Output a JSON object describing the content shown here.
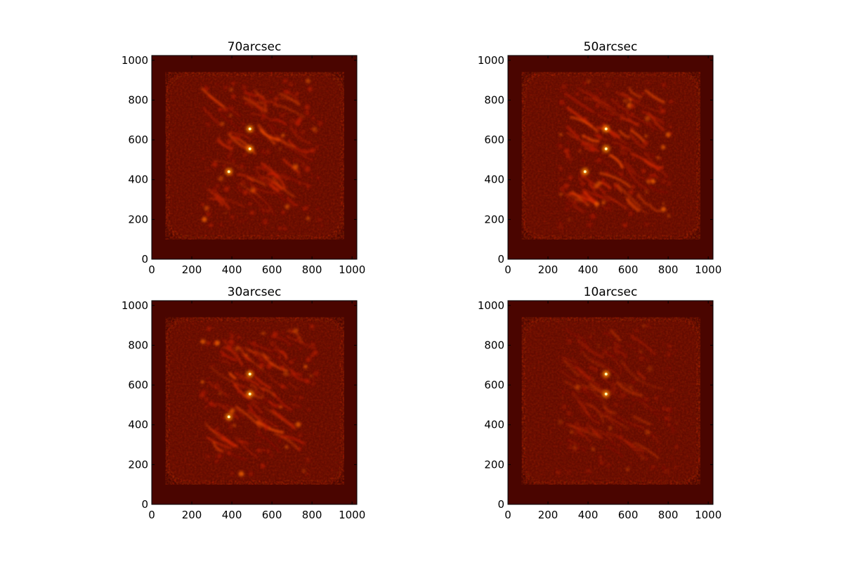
{
  "figure": {
    "background": "#ffffff",
    "colormap": "hot",
    "image_base_color": "#4a0500"
  },
  "chart_data": [
    {
      "type": "heatmap",
      "title": "70arcsec",
      "xlabel": "",
      "ylabel": "",
      "xlim": [
        0,
        1024
      ],
      "ylim": [
        0,
        1024
      ],
      "xticks": [
        0,
        200,
        400,
        600,
        800,
        1000
      ],
      "yticks": [
        0,
        200,
        400,
        600,
        800,
        1000
      ],
      "grid": false,
      "features": {
        "filament_brightness": 1.0,
        "bright_points": [
          [
            490,
            655
          ],
          [
            490,
            555
          ],
          [
            385,
            440
          ]
        ]
      }
    },
    {
      "type": "heatmap",
      "title": "50arcsec",
      "xlabel": "",
      "ylabel": "",
      "xlim": [
        0,
        1024
      ],
      "ylim": [
        0,
        1024
      ],
      "xticks": [
        0,
        200,
        400,
        600,
        800,
        1000
      ],
      "yticks": [
        0,
        200,
        400,
        600,
        800,
        1000
      ],
      "grid": false,
      "features": {
        "filament_brightness": 1.0,
        "bright_points": [
          [
            490,
            655
          ],
          [
            490,
            555
          ],
          [
            385,
            440
          ]
        ]
      }
    },
    {
      "type": "heatmap",
      "title": "30arcsec",
      "xlabel": "",
      "ylabel": "",
      "xlim": [
        0,
        1024
      ],
      "ylim": [
        0,
        1024
      ],
      "xticks": [
        0,
        200,
        400,
        600,
        800,
        1000
      ],
      "yticks": [
        0,
        200,
        400,
        600,
        800,
        1000
      ],
      "grid": false,
      "features": {
        "filament_brightness": 1.0,
        "bright_points": [
          [
            490,
            655
          ],
          [
            490,
            555
          ],
          [
            385,
            440
          ]
        ]
      }
    },
    {
      "type": "heatmap",
      "title": "10arcsec",
      "xlabel": "",
      "ylabel": "",
      "xlim": [
        0,
        1024
      ],
      "ylim": [
        0,
        1024
      ],
      "xticks": [
        0,
        200,
        400,
        600,
        800,
        1000
      ],
      "yticks": [
        0,
        200,
        400,
        600,
        800,
        1000
      ],
      "grid": false,
      "features": {
        "filament_brightness": 0.55,
        "bright_points": [
          [
            490,
            655
          ],
          [
            490,
            555
          ]
        ]
      }
    }
  ]
}
